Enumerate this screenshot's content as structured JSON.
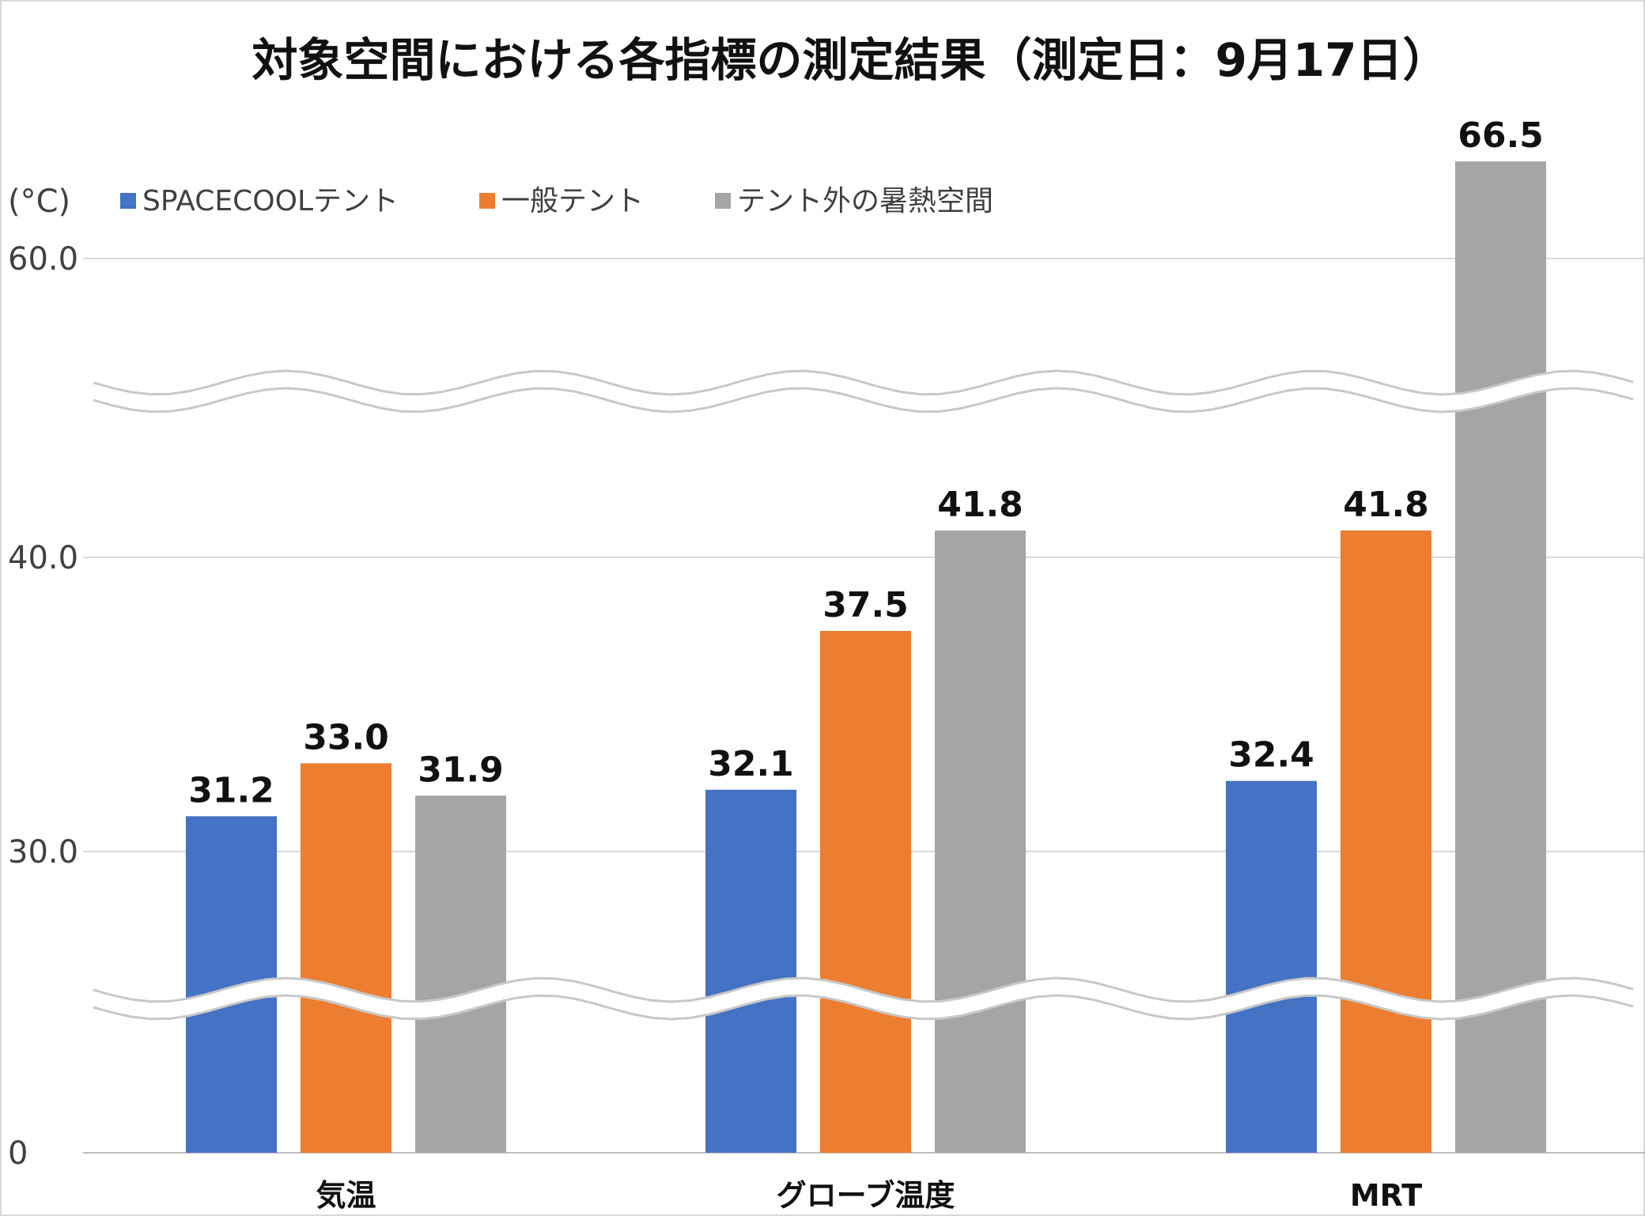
{
  "chart_data": {
    "type": "bar",
    "title": "対象空間における各指標の測定結果（測定日：9月17日）",
    "ylabel": "(°C)",
    "categories": [
      "気温",
      "グローブ温度",
      "MRT"
    ],
    "series": [
      {
        "name": "SPACECOOLテント",
        "color": "#4472C4",
        "values": [
          31.2,
          32.1,
          32.4
        ]
      },
      {
        "name": "一般テント",
        "color": "#ED7D31",
        "values": [
          33.0,
          37.5,
          41.8
        ]
      },
      {
        "name": "テント外の暑熱空間",
        "color": "#A5A5A5",
        "values": [
          31.9,
          41.8,
          66.5
        ]
      }
    ],
    "data_labels": [
      [
        "31.2",
        "32.1",
        "32.4"
      ],
      [
        "33.0",
        "37.5",
        "41.8"
      ],
      [
        "31.9",
        "41.8",
        "66.5"
      ]
    ],
    "yticks": [
      {
        "label": "0",
        "value": 0
      },
      {
        "label": "30.0",
        "value": 30
      },
      {
        "label": "40.0",
        "value": 40
      },
      {
        "label": "60.0",
        "value": 60
      }
    ],
    "axis_breaks": [
      "between 0 and 30",
      "between 40 and 60"
    ],
    "legend_position": "top-left",
    "grid": true
  }
}
